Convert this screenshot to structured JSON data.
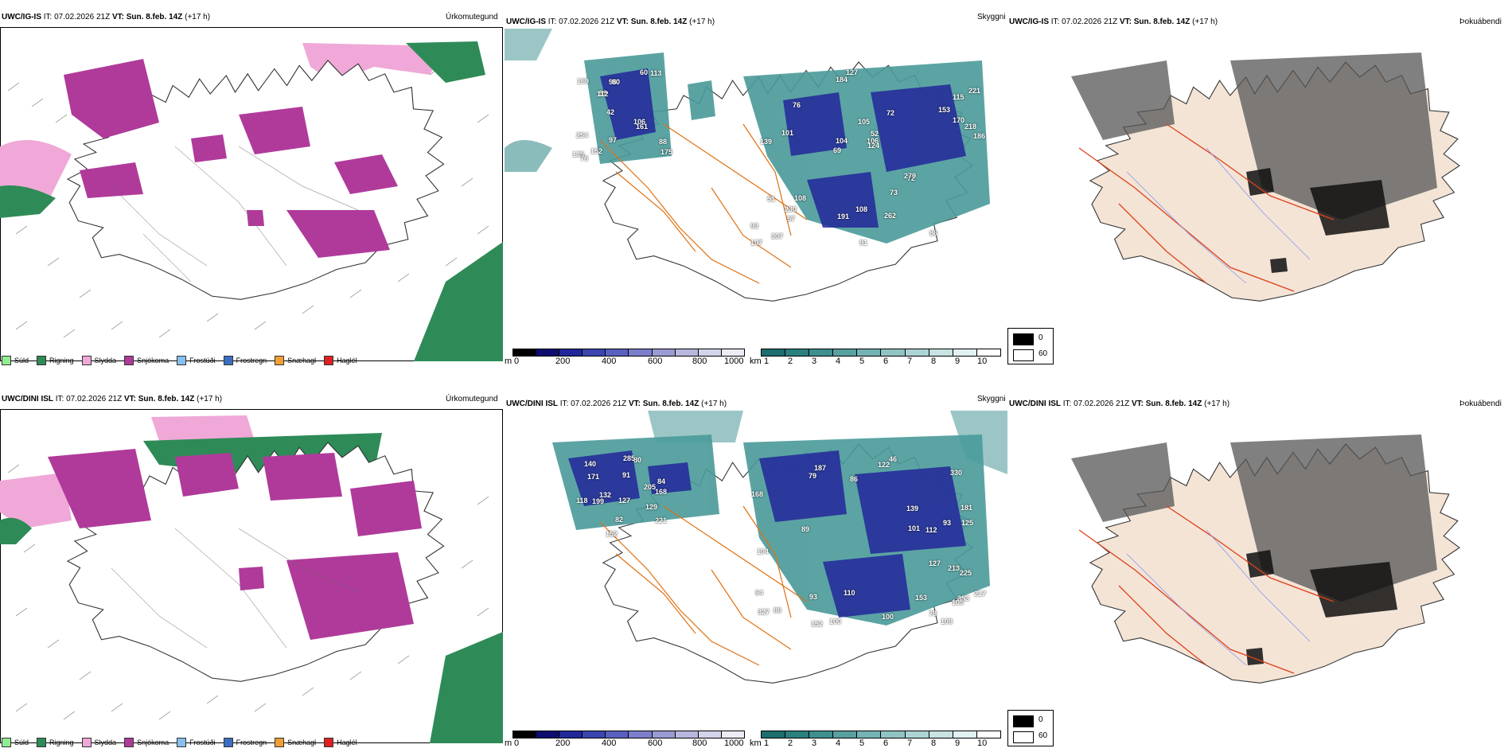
{
  "rows": [
    {
      "model": "UWC/IG-IS",
      "it_label": "IT:",
      "it": "07.02.2026 21Z",
      "vt_label": "VT:",
      "vt": "Sun. 8.feb. 14Z",
      "lead": "(+17 h)",
      "peaks": [
        "175",
        "139",
        "115",
        "42",
        "72",
        "307",
        "96",
        "105",
        "51",
        "99",
        "93",
        "57",
        "80",
        "52",
        "72",
        "169",
        "184",
        "186",
        "106",
        "170",
        "69",
        "97",
        "104",
        "76",
        "60",
        "108",
        "86",
        "88",
        "279",
        "91",
        "112",
        "101",
        "73",
        "152",
        "218",
        "106",
        "135",
        "191",
        "124",
        "254",
        "153",
        "221",
        "161",
        "262",
        "230",
        "76",
        "107",
        "108",
        "113",
        "127"
      ]
    },
    {
      "model": "UWC/DINI ISL",
      "it_label": "IT:",
      "it": "07.02.2026 21Z",
      "vt_label": "VT:",
      "vt": "Sun. 8.feb. 14Z",
      "lead": "(+17 h)",
      "peaks": [
        "221",
        "181",
        "353",
        "91",
        "327",
        "187",
        "84",
        "93",
        "330",
        "171",
        "125",
        "168",
        "168",
        "100",
        "94",
        "140",
        "105",
        "79",
        "82",
        "93",
        "104",
        "118",
        "100",
        "101",
        "152",
        "110",
        "122",
        "80",
        "139",
        "217",
        "199",
        "153",
        "152",
        "127",
        "213",
        "78",
        "205",
        "86",
        "108",
        "132",
        "127",
        "112",
        "285",
        "89",
        "225",
        "129",
        "86",
        "46"
      ]
    }
  ],
  "panels": {
    "precip_type": "Úrkomutegund",
    "cloud": "Skyggni",
    "fog": "Þokuábendi"
  },
  "precip_legend": [
    {
      "label": "Súld",
      "color": "#90ee90"
    },
    {
      "label": "Rigning",
      "color": "#2e8b57"
    },
    {
      "label": "Slydda",
      "color": "#f0a8d8"
    },
    {
      "label": "Snjókoma",
      "color": "#b03a9a"
    },
    {
      "label": "Frostúði",
      "color": "#87bfef"
    },
    {
      "label": "Frostregn",
      "color": "#3a6fc0"
    },
    {
      "label": "Snæhagl",
      "color": "#f0a030"
    },
    {
      "label": "Haglél",
      "color": "#e02020"
    }
  ],
  "height_scale": {
    "unit": "m",
    "ticks": [
      "0",
      "200",
      "400",
      "600",
      "800",
      "1000"
    ],
    "colors": [
      "#000000",
      "#0d0d70",
      "#22279a",
      "#3a46b0",
      "#5a60c0",
      "#7c7ecc",
      "#9a9ad4",
      "#b8b8de",
      "#d4d4ea",
      "#ececf4"
    ]
  },
  "vis_scale": {
    "unit": "km",
    "ticks": [
      "1",
      "2",
      "3",
      "4",
      "5",
      "6",
      "7",
      "8",
      "9",
      "10"
    ],
    "colors": [
      "#1d6e6e",
      "#2a7f7f",
      "#3f8f8f",
      "#58a1a1",
      "#74b3b3",
      "#90c4c4",
      "#acd4d4",
      "#c8e3e3",
      "#e2f1f1",
      "#ffffff"
    ]
  },
  "fog_legend": [
    {
      "label": "0",
      "color": "#000000"
    },
    {
      "label": "60",
      "color": "#ffffff"
    }
  ]
}
